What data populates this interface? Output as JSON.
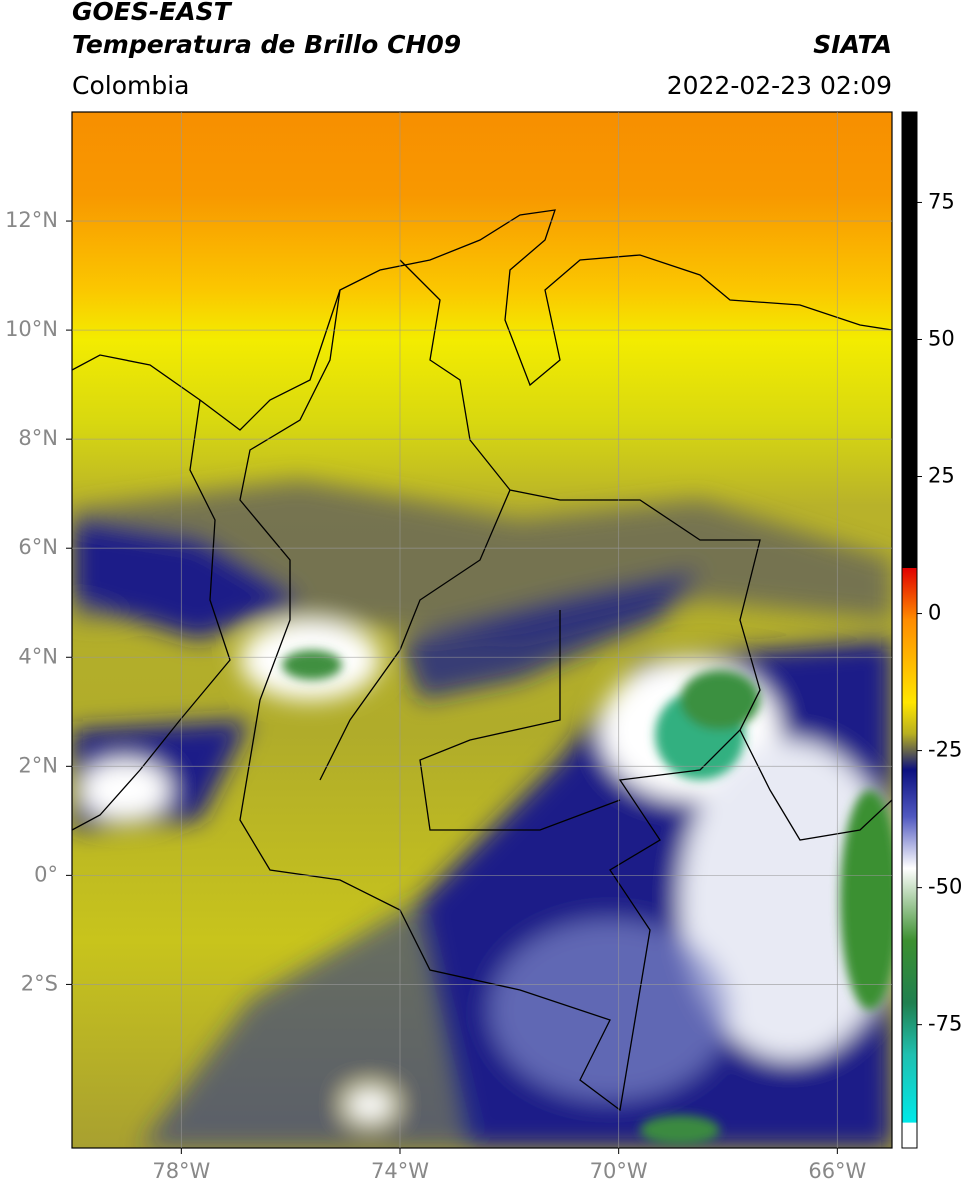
{
  "header": {
    "title": "GOES-EAST",
    "subtitle": "Temperatura de Brillo CH09",
    "source": "SIATA",
    "region": "Colombia",
    "datetime": "2022-02-23 02:09"
  },
  "map": {
    "xlim": [
      -80,
      -65
    ],
    "ylim": [
      -5,
      14
    ],
    "xticks": [
      {
        "value": -78,
        "label": "78°W"
      },
      {
        "value": -74,
        "label": "74°W"
      },
      {
        "value": -70,
        "label": "70°W"
      },
      {
        "value": -66,
        "label": "66°W"
      }
    ],
    "yticks": [
      {
        "value": 12,
        "label": "12°N"
      },
      {
        "value": 10,
        "label": "10°N"
      },
      {
        "value": 8,
        "label": "8°N"
      },
      {
        "value": 6,
        "label": "6°N"
      },
      {
        "value": 4,
        "label": "4°N"
      },
      {
        "value": 2,
        "label": "2°N"
      },
      {
        "value": 0,
        "label": "0°"
      },
      {
        "value": -2,
        "label": "2°S"
      }
    ],
    "grid": true
  },
  "colorbar": {
    "lim": [
      -97.5,
      91.5
    ],
    "ticks": [
      75,
      50,
      25,
      0,
      -25,
      -50,
      -75
    ]
  }
}
